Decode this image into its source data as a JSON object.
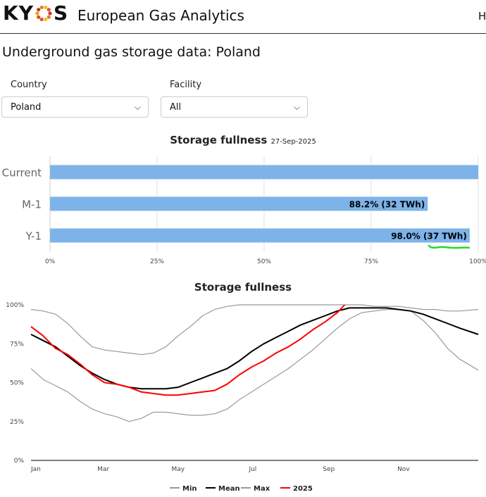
{
  "header": {
    "logo_text_left": "KY",
    "logo_text_right": "S",
    "app_title": "European Gas Analytics",
    "right_truncated": "H"
  },
  "page": {
    "title": "Underground gas storage data: Poland"
  },
  "filters": {
    "country": {
      "label": "Country",
      "value": "Poland"
    },
    "facility": {
      "label": "Facility",
      "value": "All"
    }
  },
  "colors": {
    "bar": "#7eb3ea",
    "min": "#999999",
    "mean": "#000000",
    "max": "#999999",
    "y2025": "#ff0000",
    "annotation": "#22dd22"
  },
  "chart_data": [
    {
      "type": "bar",
      "orientation": "horizontal",
      "title": "Storage fullness",
      "subtitle": "27-Sep-2025",
      "categories": [
        "Current",
        "M-1",
        "Y-1"
      ],
      "values": [
        100,
        88.2,
        98.0
      ],
      "labels": [
        "",
        "88.2% (32 TWh)",
        "98.0% (37 TWh)"
      ],
      "xlim": [
        0,
        100
      ],
      "xticks": [
        "0%",
        "25%",
        "50%",
        "75%",
        "100%"
      ],
      "grid": true
    },
    {
      "type": "line",
      "title": "Storage fullness",
      "xticks": [
        "Jan",
        "Mar",
        "May",
        "Jul",
        "Sep",
        "Nov"
      ],
      "yticks": [
        "0%",
        "25%",
        "50%",
        "75%",
        "100%"
      ],
      "ylim": [
        0,
        100
      ],
      "legend_position": "bottom",
      "series": [
        {
          "name": "Min",
          "x": [
            0,
            10,
            20,
            30,
            40,
            50,
            60,
            70,
            80,
            90,
            100,
            110,
            120,
            130,
            140,
            150,
            160,
            170,
            180,
            190,
            200,
            210,
            220,
            230,
            240,
            250,
            260,
            270,
            280,
            290,
            300,
            310,
            320,
            330,
            340,
            350,
            365
          ],
          "y": [
            59,
            52,
            48,
            44,
            38,
            33,
            30,
            28,
            25,
            27,
            31,
            31,
            30,
            29,
            29,
            30,
            33,
            39,
            44,
            49,
            54,
            59,
            65,
            71,
            78,
            85,
            91,
            95,
            96,
            97,
            97,
            96,
            90,
            82,
            72,
            65,
            58
          ]
        },
        {
          "name": "Mean",
          "x": [
            0,
            10,
            20,
            30,
            40,
            50,
            60,
            70,
            80,
            90,
            100,
            110,
            120,
            130,
            140,
            150,
            160,
            170,
            180,
            190,
            200,
            210,
            220,
            230,
            240,
            250,
            260,
            270,
            280,
            290,
            300,
            310,
            320,
            330,
            340,
            350,
            365
          ],
          "y": [
            81,
            77,
            73,
            67,
            61,
            56,
            52,
            49,
            47,
            46,
            46,
            46,
            47,
            50,
            53,
            56,
            59,
            64,
            70,
            75,
            79,
            83,
            87,
            90,
            93,
            96,
            98,
            98,
            98,
            98,
            97,
            96,
            94,
            91,
            88,
            85,
            81
          ]
        },
        {
          "name": "Max",
          "x": [
            0,
            10,
            20,
            30,
            40,
            50,
            60,
            70,
            80,
            90,
            100,
            110,
            120,
            130,
            140,
            150,
            160,
            170,
            180,
            190,
            200,
            210,
            220,
            230,
            240,
            250,
            260,
            270,
            280,
            290,
            300,
            310,
            320,
            330,
            340,
            350,
            365
          ],
          "y": [
            97,
            96,
            94,
            88,
            80,
            73,
            71,
            70,
            69,
            68,
            69,
            73,
            80,
            86,
            93,
            97,
            99,
            100,
            100,
            100,
            100,
            100,
            100,
            100,
            100,
            100,
            100,
            100,
            99,
            99,
            99,
            98,
            97,
            97,
            96,
            96,
            97
          ]
        },
        {
          "name": "2025",
          "x": [
            0,
            10,
            20,
            30,
            40,
            50,
            60,
            70,
            80,
            90,
            100,
            110,
            120,
            130,
            140,
            150,
            160,
            170,
            180,
            190,
            200,
            210,
            220,
            230,
            240,
            250,
            256
          ],
          "y": [
            86,
            80,
            72,
            68,
            62,
            55,
            50,
            49,
            47,
            44,
            43,
            42,
            42,
            43,
            44,
            45,
            49,
            55,
            60,
            64,
            69,
            73,
            78,
            84,
            89,
            95,
            100
          ]
        }
      ]
    }
  ]
}
